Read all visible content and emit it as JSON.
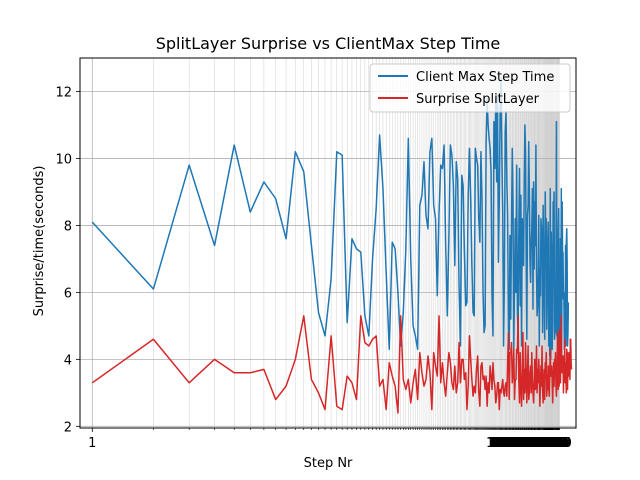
{
  "chart_data": {
    "type": "line",
    "title": "SplitLayer Surprise vs ClientMax Step Time",
    "xlabel": "Step Nr",
    "ylabel": "Surprise/time(seconds)",
    "xscale": "log",
    "xlim": [
      0.87,
      241
    ],
    "ylim": [
      1.95,
      13.0
    ],
    "yticks": [
      2,
      4,
      6,
      8,
      10,
      12
    ],
    "xtick_major": [
      1
    ],
    "xtick_major_labels": [
      "1"
    ],
    "xtick_minor_start": 2,
    "xtick_minor_end": 200,
    "x_label_cluster_start": 100,
    "x_label_cluster_end": 200,
    "grid": true,
    "legend": "top-right",
    "colors": {
      "client": "#1f77b4",
      "surprise": "#d62728",
      "grid": "#b0b0b0"
    },
    "series": [
      {
        "name": "Client Max Step Time",
        "values": [
          8.1,
          6.1,
          9.8,
          7.4,
          10.4,
          8.4,
          9.3,
          8.8,
          7.6,
          10.2,
          9.6,
          7.4,
          5.4,
          4.7,
          6.4,
          10.2,
          10.1,
          5.1,
          7.6,
          7.3,
          7.2,
          5.3,
          4.7,
          7.0,
          8.5,
          10.7,
          9.1,
          6.6,
          4.3,
          7.5,
          7.3,
          6.0,
          4.4,
          5.4,
          7.3,
          10.6,
          7.0,
          5.0,
          4.7,
          4.3,
          8.6,
          8.9,
          9.9,
          8.3,
          7.9,
          10.2,
          10.6,
          8.6,
          8.2,
          5.9,
          8.4,
          9.8,
          9.7,
          10.4,
          7.4,
          5.3,
          7.6,
          10.4,
          10.1,
          9.2,
          6.8,
          9.9,
          9.4,
          6.2,
          4.4,
          9.5,
          9.2,
          7.2,
          5.6,
          5.7,
          8.9,
          10.3,
          8.8,
          6.8,
          5.4,
          5.3,
          10.3,
          10.0,
          9.8,
          8.2,
          7.5,
          10.2,
          8.8,
          6.0,
          4.8,
          5.0,
          10.5,
          11.8,
          11.0,
          10.6,
          10.3,
          9.6,
          5.9,
          4.7,
          11.1,
          9.7,
          11.8,
          9.3,
          11.9,
          6.9,
          8.8,
          11.4,
          12.4,
          10.0,
          8.4,
          4.4,
          6.4,
          10.8,
          11.4,
          9.3,
          8.3,
          4.9,
          4.3,
          7.7,
          5.2,
          7.9,
          10.3,
          8.6,
          4.3,
          6.1,
          8.2,
          6.0,
          9.8,
          5.4,
          4.8,
          7.8,
          9.7,
          5.6,
          8.9,
          4.4,
          8.2,
          7.7,
          6.8,
          9.3,
          11.0,
          10.2,
          6.9,
          4.6,
          8.3,
          8.6,
          10.5,
          9.1,
          7.0,
          6.3,
          7.4,
          7.9,
          9.1,
          5.5,
          9.3,
          6.7,
          8.7,
          7.4,
          10.4,
          6.7,
          5.3,
          5.6,
          6.5,
          8.3,
          4.4,
          6.7,
          5.9,
          8.2,
          7.9,
          7.6,
          4.8,
          8.6,
          7.1,
          5.7,
          4.6,
          9.0,
          7.3,
          8.2,
          4.9,
          6.1,
          7.5,
          8.1,
          4.4,
          6.6,
          4.1,
          9.1,
          4.0,
          7.8,
          6.9,
          4.3,
          5.1,
          8.7,
          8.3,
          9.0,
          4.6,
          4.9,
          4.8,
          6.5,
          11.1,
          4.7,
          4.7,
          4.3,
          7.8,
          8.5,
          4.4,
          6.6,
          4.0,
          7.6,
          6.0,
          9.1,
          4.1,
          8.7,
          7.1,
          7.2,
          5.8,
          6.0,
          4.3,
          5.9,
          4.9,
          7.4,
          4.4,
          7.5,
          7.9,
          6.9,
          4.4,
          4.8,
          5.7
        ]
      },
      {
        "name": "Surprise SplitLayer",
        "values": [
          3.3,
          4.6,
          3.3,
          4.0,
          3.6,
          3.6,
          3.7,
          2.8,
          3.2,
          4.0,
          5.3,
          3.4,
          3.0,
          2.5,
          4.7,
          2.6,
          2.5,
          3.5,
          3.3,
          2.8,
          5.3,
          4.5,
          4.4,
          4.6,
          4.7,
          3.2,
          3.4,
          2.5,
          3.9,
          3.5,
          3.2,
          2.4,
          5.3,
          3.4,
          3.1,
          3.4,
          2.7,
          3.3,
          3.7,
          2.8,
          4.2,
          3.6,
          3.2,
          3.4,
          4.1,
          3.6,
          2.5,
          4.2,
          3.8,
          3.5,
          5.3,
          3.3,
          3.9,
          3.3,
          2.9,
          3.6,
          4.2,
          3.9,
          3.3,
          3.1,
          3.8,
          3.0,
          3.3,
          4.5,
          3.3,
          4.0,
          4.0,
          3.4,
          3.6,
          2.5,
          3.2,
          4.7,
          4.0,
          3.4,
          2.9,
          3.2,
          3.0,
          3.7,
          4.1,
          3.0,
          2.6,
          3.8,
          3.9,
          3.4,
          3.5,
          3.1,
          3.5,
          2.6,
          3.3,
          3.0,
          3.8,
          3.5,
          3.1,
          3.9,
          3.4,
          3.2,
          2.7,
          2.9,
          3.3,
          3.3,
          2.5,
          3.1,
          3.0,
          3.2,
          3.4,
          3.0,
          2.9,
          3.2,
          3.3,
          2.9,
          3.9,
          4.8,
          2.8,
          4.2,
          4.2,
          4.5,
          3.3,
          3.6,
          4.3,
          2.8,
          3.4,
          3.4,
          4.3,
          4.2,
          5.3,
          3.4,
          2.7,
          4.2,
          3.2,
          2.6,
          3.5,
          4.8,
          2.8,
          3.7,
          3.0,
          4.5,
          3.5,
          2.7,
          3.6,
          4.4,
          2.8,
          3.0,
          3.6,
          3.8,
          3.0,
          4.2,
          3.4,
          3.0,
          2.7,
          3.3,
          4.0,
          3.1,
          3.2,
          4.4,
          3.0,
          3.7,
          3.3,
          4.0,
          3.5,
          2.6,
          3.2,
          3.8,
          3.2,
          4.4,
          3.1,
          2.7,
          3.4,
          3.7,
          2.8,
          3.9,
          3.5,
          4.2,
          2.9,
          3.5,
          3.1,
          3.8,
          3.1,
          2.9,
          3.6,
          4.3,
          3.5,
          3.8,
          3.8,
          3.3,
          2.7,
          3.4,
          3.9,
          3.2,
          4.0,
          3.6,
          4.2,
          3.2,
          2.9,
          3.5,
          4.3,
          4.8,
          3.1,
          3.9,
          3.2,
          4.9,
          3.7,
          3.3,
          4.0,
          5.3,
          3.7,
          3.6,
          3.6,
          4.1,
          3.0,
          4.0,
          3.7,
          4.6,
          3.3,
          3.9,
          3.4,
          3.0,
          4.3,
          4.1,
          3.1,
          4.2,
          3.6,
          3.8,
          3.5,
          4.2,
          3.4,
          4.6,
          4.6,
          3.9,
          3.7
        ]
      }
    ]
  }
}
